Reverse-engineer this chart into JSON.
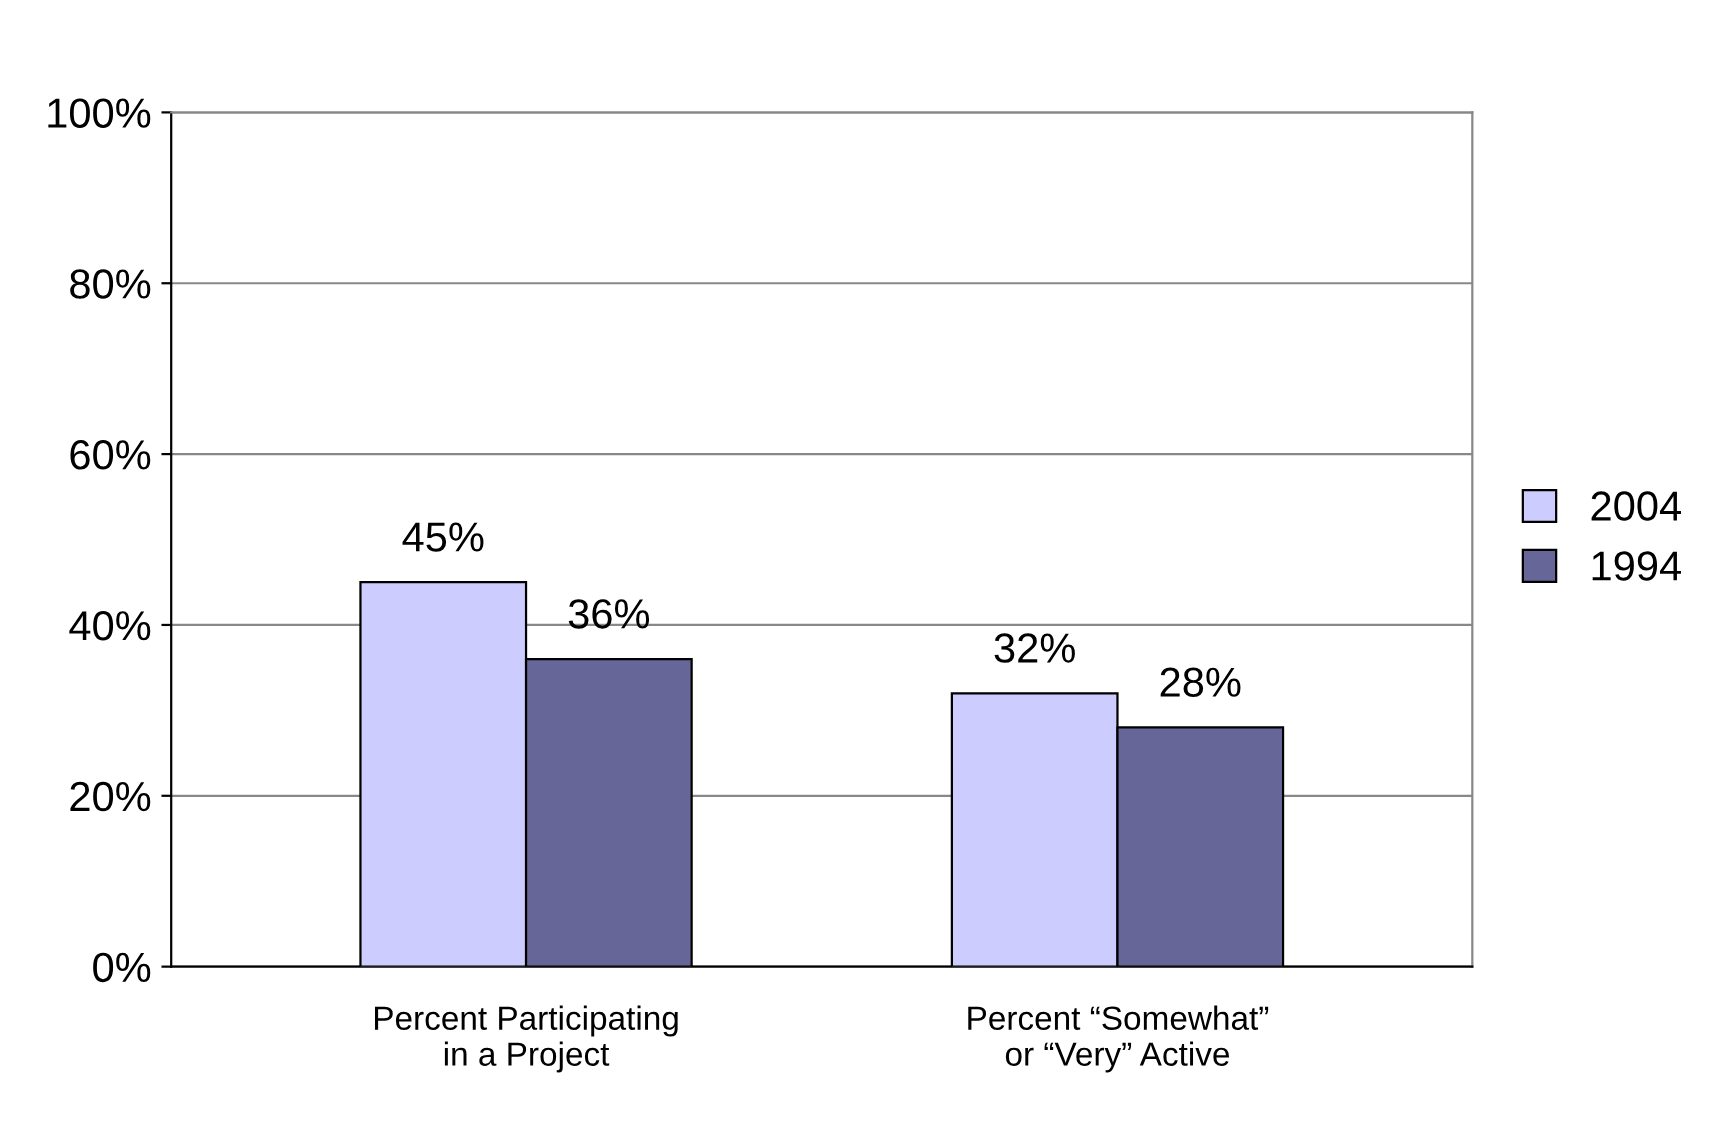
{
  "chart_data": {
    "type": "bar",
    "categories": [
      "Percent Participating\nin a Project",
      "Percent “Somewhat”\nor “Very” Active"
    ],
    "series": [
      {
        "name": "2004",
        "color": "#ccccff",
        "values": [
          45,
          32
        ],
        "value_labels": [
          "45%",
          "32%"
        ]
      },
      {
        "name": "1994",
        "color": "#666699",
        "values": [
          36,
          28
        ],
        "value_labels": [
          "36%",
          "28%"
        ]
      }
    ],
    "ylim": [
      0,
      100
    ],
    "yticks": [
      {
        "value": 0,
        "label": "0%"
      },
      {
        "value": 20,
        "label": "20%"
      },
      {
        "value": 40,
        "label": "40%"
      },
      {
        "value": 60,
        "label": "60%"
      },
      {
        "value": 80,
        "label": "80%"
      },
      {
        "value": 100,
        "label": "100%"
      }
    ],
    "grid": "y",
    "legend": "right"
  }
}
